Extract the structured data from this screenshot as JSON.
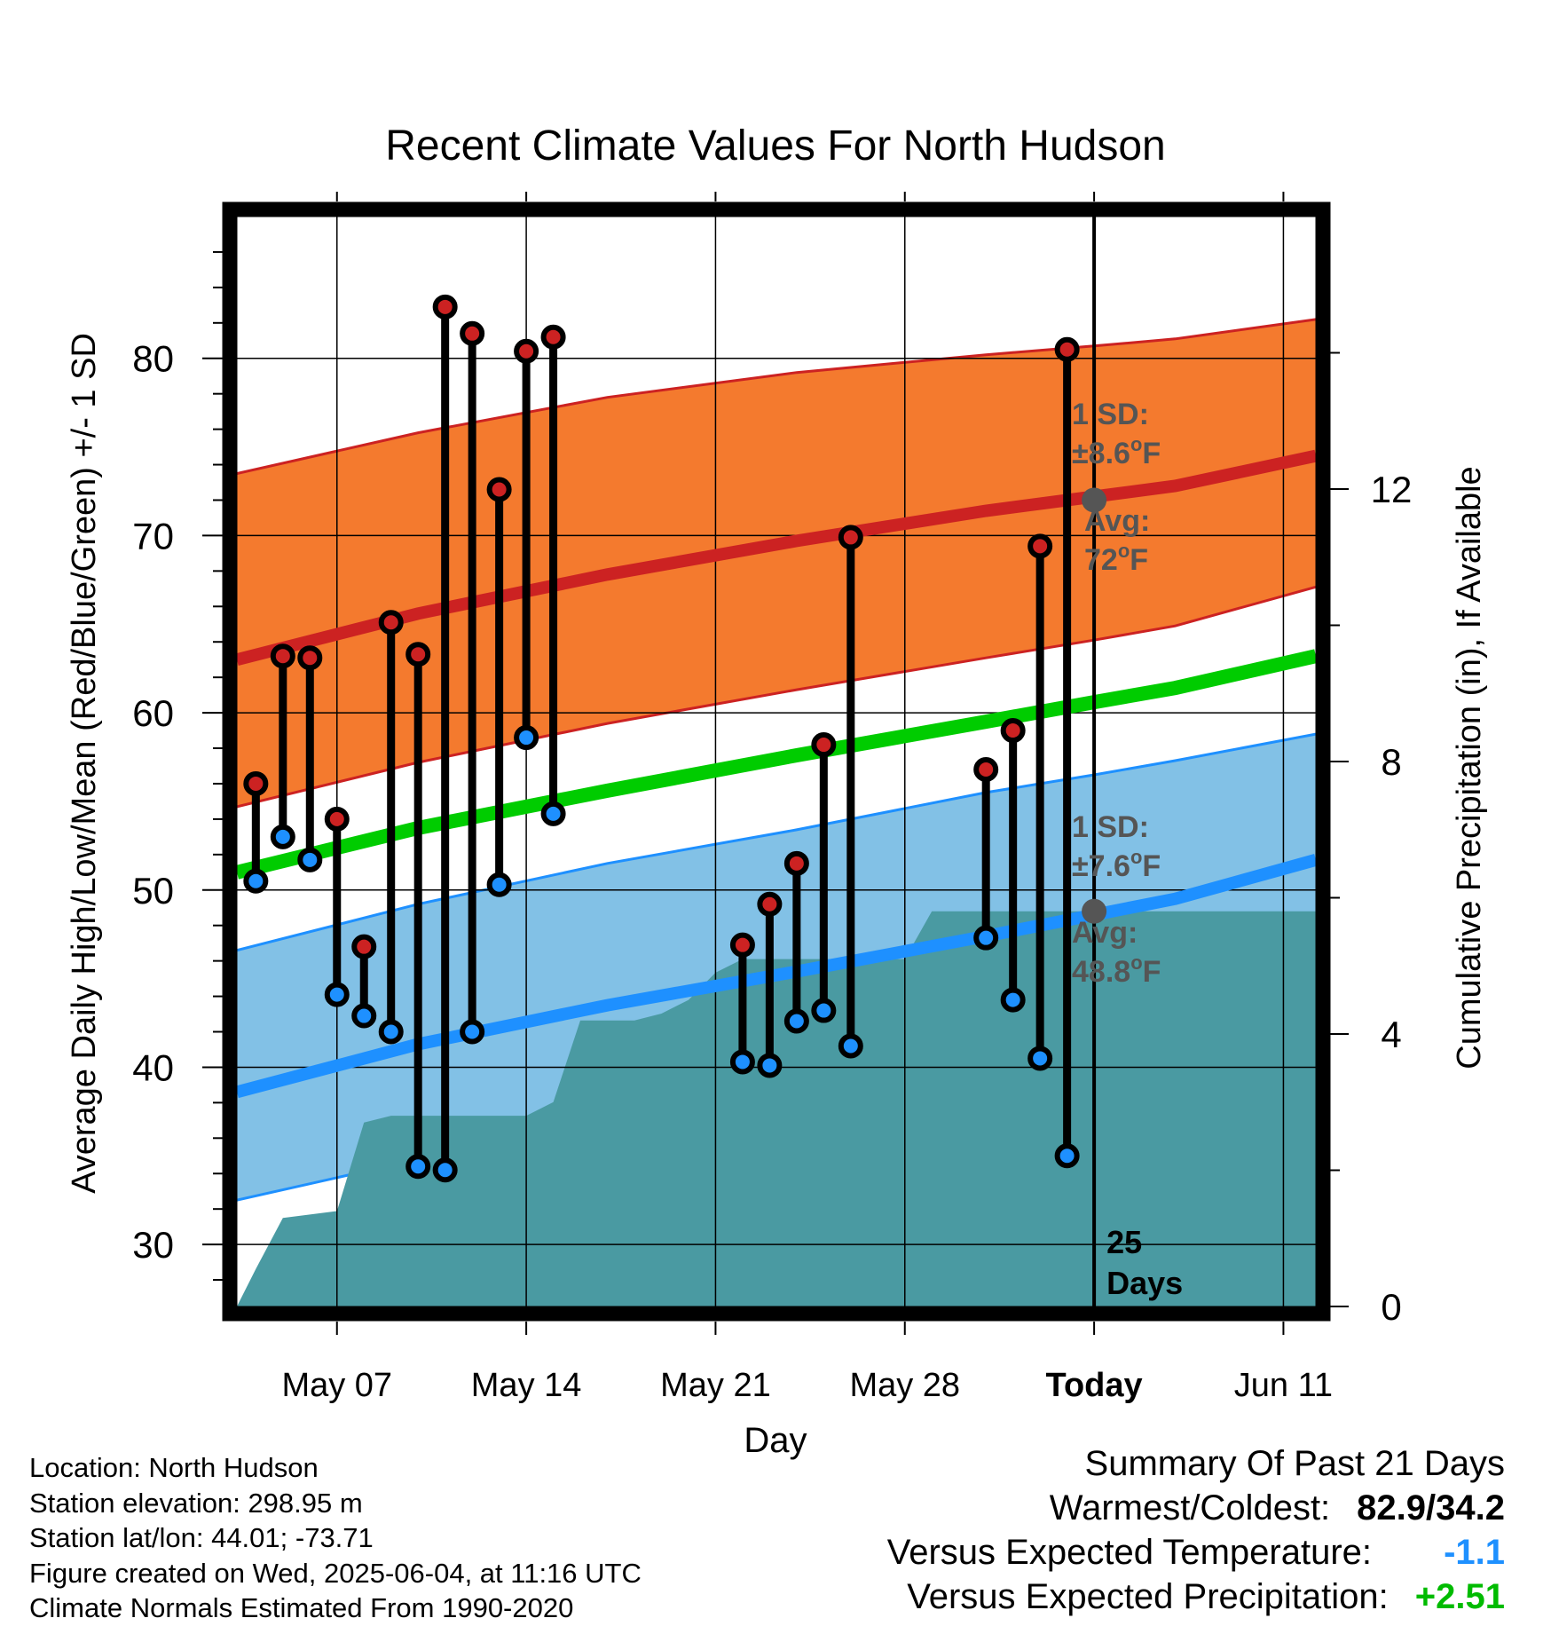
{
  "chart_data": {
    "type": "line",
    "title": "Recent Climate Values For North Hudson",
    "xlabel": "Day",
    "ylabel": "Average Daily High/Low/Mean (Red/Blue/Green) +/- 1 SD",
    "y2label": "Cumulative Precipitation (in), If Available",
    "ylim": [
      26.5,
      88
    ],
    "y2lim": [
      0,
      16
    ],
    "xlim": [
      3.3,
      43.2
    ],
    "grid": true,
    "x_ticks": [
      {
        "day": 7,
        "label": "May 07"
      },
      {
        "day": 14,
        "label": "May 14"
      },
      {
        "day": 21,
        "label": "May 21"
      },
      {
        "day": 28,
        "label": "May 28"
      },
      {
        "day": 35,
        "label": "Today"
      },
      {
        "day": 42,
        "label": "Jun 11"
      }
    ],
    "y_ticks": [
      30,
      40,
      50,
      60,
      70,
      80
    ],
    "y2_ticks": [
      0,
      4,
      8,
      12
    ],
    "today_day": 35,
    "today_label": [
      "25",
      "Days"
    ],
    "normals": {
      "x": [
        3.3,
        10,
        17,
        24,
        31,
        35,
        38,
        43.2
      ],
      "high_avg": [
        63,
        65.6,
        67.8,
        69.7,
        71.4,
        72.2,
        72.8,
        74.5
      ],
      "high_sd_upper": [
        73.5,
        75.8,
        77.8,
        79.2,
        80.2,
        80.7,
        81.1,
        82.2
      ],
      "high_sd_lower": [
        54.7,
        57.2,
        59.4,
        61.3,
        63.1,
        64.1,
        64.9,
        67.1
      ],
      "mean_avg": [
        51,
        53.5,
        55.6,
        57.6,
        59.5,
        60.6,
        61.4,
        63.2
      ],
      "low_avg": [
        38.6,
        41.3,
        43.5,
        45.4,
        47.4,
        48.6,
        49.5,
        51.7
      ],
      "low_sd_upper": [
        46.6,
        49.2,
        51.5,
        53.4,
        55.5,
        56.5,
        57.3,
        58.8
      ],
      "low_sd_lower": [
        32.5,
        34.8,
        36.7,
        38.3,
        40.2,
        41.1,
        41.9,
        45.6
      ]
    },
    "series": [
      {
        "name": "High",
        "color": "#cc2222",
        "x": [
          4,
          5,
          6,
          7,
          8,
          9,
          10,
          11,
          12,
          13,
          14,
          15,
          22,
          23,
          24,
          25,
          26,
          31,
          32,
          33,
          34
        ],
        "values": [
          56.0,
          63.2,
          63.1,
          54.0,
          46.8,
          65.1,
          63.3,
          82.9,
          81.4,
          72.6,
          80.4,
          81.2,
          46.9,
          49.2,
          51.5,
          58.2,
          69.9,
          56.8,
          59.0,
          69.4,
          80.5
        ]
      },
      {
        "name": "Low",
        "color": "#1e90ff",
        "x": [
          4,
          5,
          6,
          7,
          8,
          9,
          10,
          11,
          12,
          13,
          14,
          15,
          22,
          23,
          24,
          25,
          26,
          31,
          32,
          33,
          34
        ],
        "values": [
          50.5,
          53.0,
          51.7,
          44.1,
          42.9,
          42.0,
          34.4,
          34.2,
          42.0,
          50.3,
          58.6,
          54.3,
          40.3,
          40.1,
          42.6,
          43.2,
          41.2,
          47.3,
          43.8,
          40.5,
          35.0
        ]
      }
    ],
    "precip": {
      "x": [
        3.3,
        4,
        5,
        6,
        7,
        8,
        9,
        10,
        11,
        12,
        13,
        14,
        15,
        16,
        17,
        18,
        19,
        20,
        21,
        22,
        23,
        24,
        25,
        26,
        27,
        28,
        29,
        30,
        31,
        32,
        33,
        34,
        35,
        43.2
      ],
      "values": [
        0,
        0.55,
        1.3,
        1.35,
        1.4,
        2.7,
        2.8,
        2.8,
        2.8,
        2.8,
        2.8,
        2.8,
        3.0,
        4.2,
        4.2,
        4.2,
        4.3,
        4.5,
        4.9,
        5.1,
        5.1,
        5.1,
        5.1,
        5.1,
        5.1,
        5.1,
        5.8,
        5.8,
        5.8,
        5.8,
        5.8,
        5.8,
        5.8,
        5.8
      ]
    },
    "annotations": {
      "high_sd_title": "1 SD:",
      "high_sd_value": "±8.6",
      "high_avg_title": "Avg:",
      "high_avg_value": "72",
      "low_sd_title": "1 SD:",
      "low_sd_value": "±7.6",
      "low_avg_title": "Avg:",
      "low_avg_value": "48.8",
      "degree": "o",
      "unit": "F",
      "high_avg_point": 72,
      "low_avg_point": 48.8
    },
    "colors": {
      "high_band": "#f47a2e",
      "high_line": "#cc2222",
      "mean_line": "#00cc00",
      "low_band": "#82c1e6",
      "low_line": "#1e90ff",
      "precip": "#4a9aa2",
      "annotation": "#555555"
    }
  },
  "footer": {
    "location": "Location: North Hudson",
    "elevation": "Station elevation: 298.95 m",
    "latlon": "Station lat/lon: 44.01; -73.71",
    "created": "Figure created on Wed, 2025-06-04, at 11:16 UTC",
    "normals": "Climate Normals Estimated From 1990-2020"
  },
  "summary": {
    "title": "Summary Of Past 21 Days",
    "warmest_label": "Warmest/Coldest:",
    "warmest_value": "82.9/34.2",
    "temp_label": "Versus Expected Temperature:",
    "temp_value": "-1.1",
    "temp_color": "#1e90ff",
    "precip_label": "Versus Expected Precipitation:",
    "precip_value": "+2.51",
    "precip_color": "#00bb00"
  }
}
